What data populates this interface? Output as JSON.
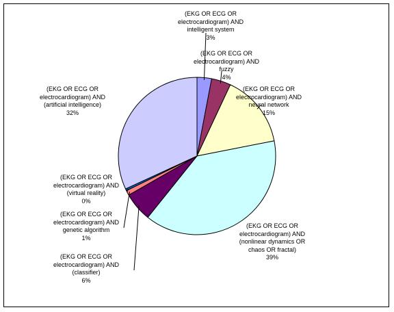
{
  "chart_data": {
    "type": "pie",
    "title": "",
    "slices": [
      {
        "lines": [
          "(EKG OR ECG OR",
          "electrocardiogram) AND",
          "intelligent system"
        ],
        "percent_label": "3%",
        "value": 3,
        "color": "#9999ff"
      },
      {
        "lines": [
          "(EKG OR ECG OR",
          "electrocardiogram) AND",
          "fuzzy"
        ],
        "percent_label": "4%",
        "value": 4,
        "color": "#993366"
      },
      {
        "lines": [
          "(EKG OR ECG OR",
          "electrocardiogram) AND",
          "neural network"
        ],
        "percent_label": "15%",
        "value": 15,
        "color": "#ffffcc"
      },
      {
        "lines": [
          "(EKG OR ECG OR",
          "electrocardiogram) AND",
          "(nonlinear dynamics OR",
          "chaos OR fractal)"
        ],
        "percent_label": "39%",
        "value": 39,
        "color": "#ccffff"
      },
      {
        "lines": [
          "(EKG OR ECG OR",
          "electrocardiogram) AND",
          "(classifier)"
        ],
        "percent_label": "6%",
        "value": 6,
        "color": "#660066"
      },
      {
        "lines": [
          "(EKG OR ECG OR",
          "electrocardiogram) AND",
          "genetic algorithm"
        ],
        "percent_label": "1%",
        "value": 1,
        "color": "#ff8080"
      },
      {
        "lines": [
          "(EKG OR ECG OR",
          "electrocardiogram) AND",
          "(virtual reality)"
        ],
        "percent_label": "0%",
        "value": 0.4,
        "color": "#0066cc"
      },
      {
        "lines": [
          "(EKG OR ECG OR",
          "electrocardiogram) AND",
          "(artificial intelligence)"
        ],
        "percent_label": "32%",
        "value": 32,
        "color": "#ccccff"
      }
    ]
  }
}
